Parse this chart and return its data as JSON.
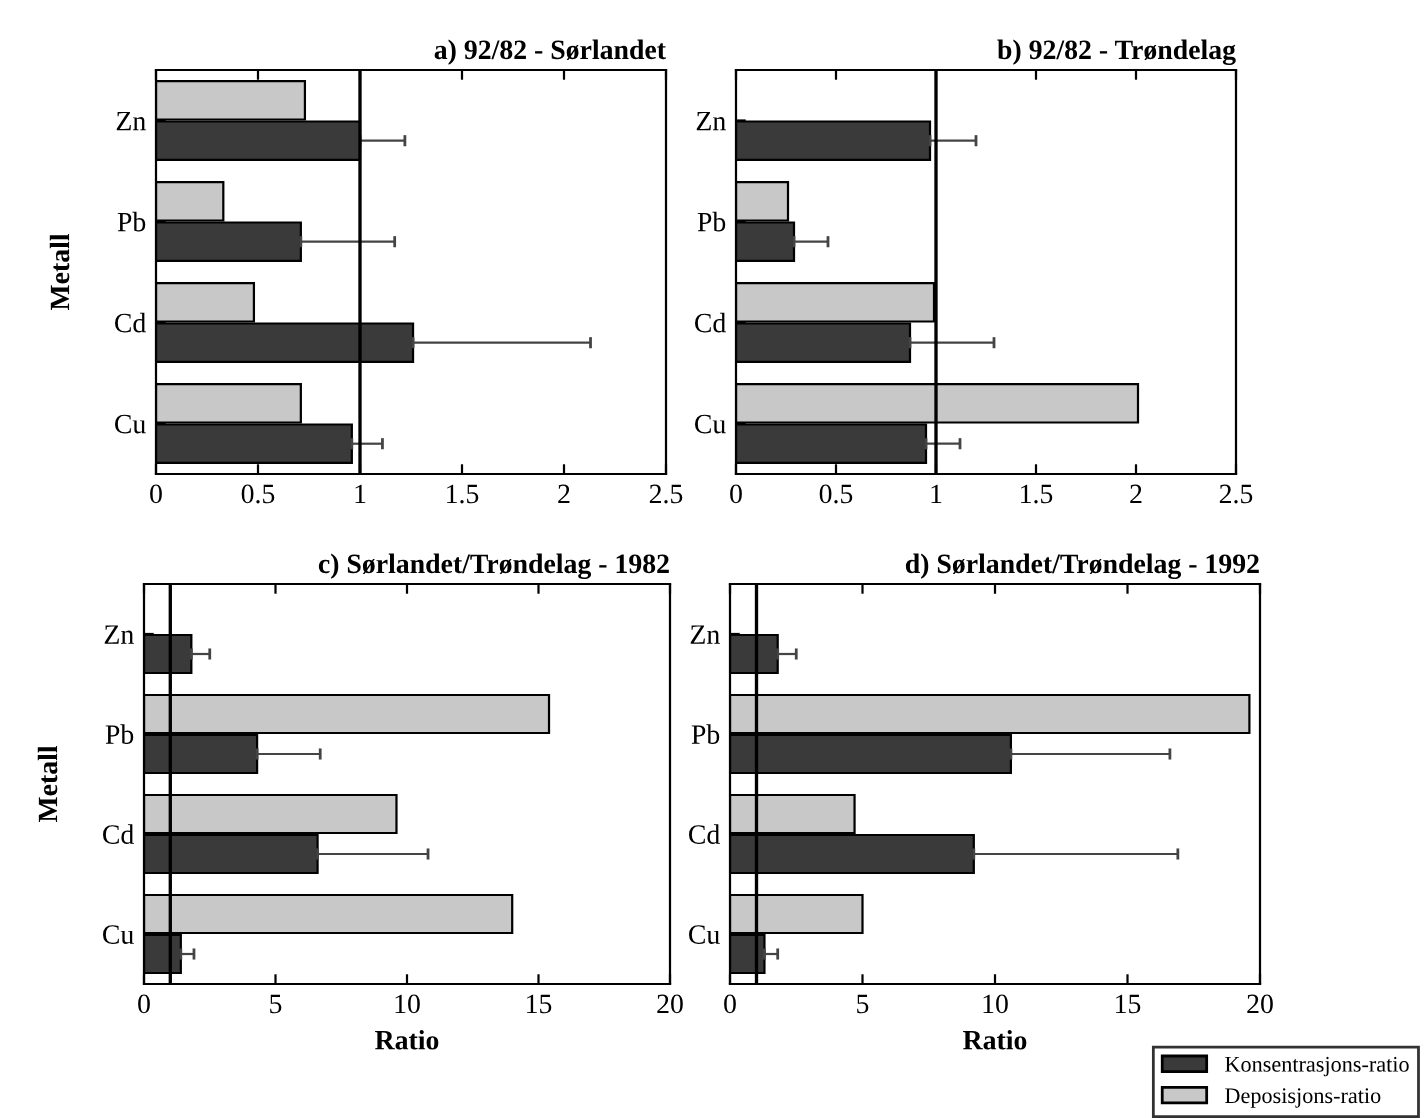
{
  "chart_data": [
    {
      "type": "bar",
      "orientation": "horizontal",
      "title": "a) 92/82 - Sørlandet",
      "ylabel": "Metall",
      "categories": [
        "Zn",
        "Pb",
        "Cd",
        "Cu"
      ],
      "xlim": [
        0,
        2.5
      ],
      "xticks": [
        0,
        0.5,
        1,
        1.5,
        2,
        2.5
      ],
      "grid": false,
      "series": [
        {
          "color": "#c8c8c8",
          "values": [
            0.73,
            0.33,
            0.48,
            0.71
          ]
        },
        {
          "color": "#3a3a3a",
          "values": [
            1.0,
            0.71,
            1.26,
            0.96
          ],
          "errors": [
            [
              1.0,
              1.22
            ],
            [
              0.71,
              1.17
            ],
            [
              1.26,
              2.13
            ],
            [
              0.96,
              1.11
            ]
          ]
        }
      ],
      "ref_lines": [
        {
          "axis": "x",
          "value": 1,
          "color": "#000000"
        }
      ]
    },
    {
      "type": "bar",
      "orientation": "horizontal",
      "title": "b) 92/82 - Trøndelag",
      "categories": [
        "Zn",
        "Pb",
        "Cd",
        "Cu"
      ],
      "xlim": [
        0,
        2.5
      ],
      "xticks": [
        0,
        0.5,
        1,
        1.5,
        2,
        2.5
      ],
      "grid": false,
      "series": [
        {
          "color": "#c8c8c8",
          "values": [
            null,
            0.26,
            0.99,
            2.01
          ]
        },
        {
          "color": "#3a3a3a",
          "values": [
            0.97,
            0.29,
            0.87,
            0.95
          ],
          "errors": [
            [
              0.97,
              1.2
            ],
            [
              0.29,
              0.46
            ],
            [
              0.87,
              1.29
            ],
            [
              0.95,
              1.12
            ]
          ]
        }
      ],
      "ref_lines": [
        {
          "axis": "x",
          "value": 1,
          "color": "#000000"
        }
      ]
    },
    {
      "type": "bar",
      "orientation": "horizontal",
      "title": "c) Sørlandet/Trøndelag - 1982",
      "ylabel": "Metall",
      "xlabel": "Ratio",
      "categories": [
        "Zn",
        "Pb",
        "Cd",
        "Cu"
      ],
      "xlim": [
        0,
        20
      ],
      "xticks": [
        0,
        5,
        10,
        15,
        20
      ],
      "grid": false,
      "series": [
        {
          "color": "#c8c8c8",
          "values": [
            null,
            15.4,
            9.6,
            14.0
          ]
        },
        {
          "color": "#3a3a3a",
          "values": [
            1.8,
            4.3,
            6.6,
            1.4
          ],
          "errors": [
            [
              1.8,
              2.5
            ],
            [
              4.3,
              6.7
            ],
            [
              6.6,
              10.8
            ],
            [
              1.4,
              1.9
            ]
          ]
        }
      ],
      "ref_lines": [
        {
          "axis": "x",
          "value": 1,
          "color": "#000000"
        }
      ]
    },
    {
      "type": "bar",
      "orientation": "horizontal",
      "title": "d) Sørlandet/Trøndelag - 1992",
      "xlabel": "Ratio",
      "categories": [
        "Zn",
        "Pb",
        "Cd",
        "Cu"
      ],
      "xlim": [
        0,
        20
      ],
      "xticks": [
        0,
        5,
        10,
        15,
        20
      ],
      "grid": false,
      "legend": "bottom right",
      "series": [
        {
          "name": "Deposisjons-ratio",
          "color": "#c8c8c8",
          "values": [
            null,
            19.6,
            4.7,
            5.0
          ]
        },
        {
          "name": "Konsentrasjons-ratio",
          "color": "#3a3a3a",
          "values": [
            1.8,
            10.6,
            9.2,
            1.3
          ],
          "errors": [
            [
              1.8,
              2.5
            ],
            [
              10.6,
              16.6
            ],
            [
              9.2,
              16.9
            ],
            [
              1.3,
              1.8
            ]
          ]
        }
      ],
      "ref_lines": [
        {
          "axis": "x",
          "value": 1,
          "color": "#000000"
        }
      ]
    }
  ]
}
